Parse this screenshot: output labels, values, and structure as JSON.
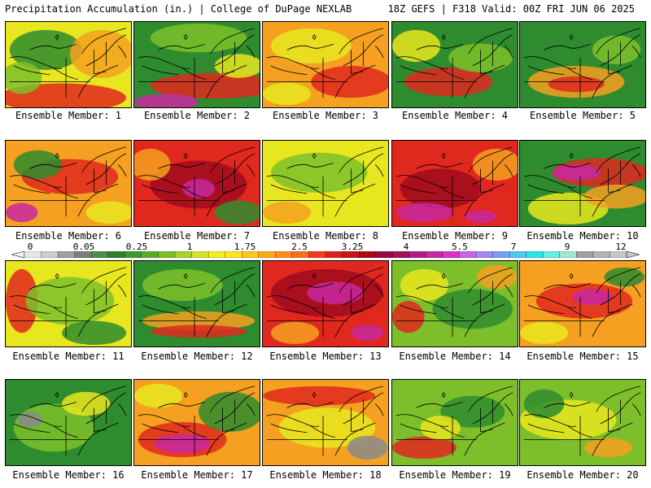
{
  "header": {
    "title": "Precipitation Accumulation (in.) | College of DuPage NEXLAB",
    "run_info": "18Z GEFS | F318 Valid: 00Z FRI JUN 06 2025"
  },
  "colorbar": {
    "labels": [
      "0",
      "0.05",
      "0.25",
      "1",
      "1.75",
      "2.5",
      "3.25",
      "4",
      "5.5",
      "7",
      "9",
      "12"
    ],
    "colors": [
      "#e6e6e6",
      "#cccccc",
      "#a0a0a0",
      "#7d7d7d",
      "#4e8d4e",
      "#2f7f2f",
      "#3c9a28",
      "#5aac28",
      "#7dc028",
      "#a8d22c",
      "#d2e628",
      "#f0f020",
      "#ffe61e",
      "#ffc81e",
      "#ffaa1e",
      "#ff8c1e",
      "#ff6e1e",
      "#f03c1e",
      "#dc1e1e",
      "#c81414",
      "#aa0a14",
      "#960a3c",
      "#a0145a",
      "#b41e82",
      "#c828a0",
      "#dc32c8",
      "#c864e6",
      "#a08cf0",
      "#78a0f0",
      "#50c8f0",
      "#28e6e6",
      "#64f0dc",
      "#a0e6d2",
      "#a0a0a0",
      "#b4b4b4",
      "#c8c8c8"
    ]
  },
  "palette": {
    "green": "#2e8b2e",
    "lightgreen": "#7dbf2a",
    "yellow": "#e8e61e",
    "orange": "#f5a020",
    "red": "#e0281e",
    "darkred": "#a00a1e",
    "magenta": "#c828a0",
    "gray": "#8a8a8a"
  },
  "members": [
    {
      "label": "Ensemble Member: 1"
    },
    {
      "label": "Ensemble Member: 2"
    },
    {
      "label": "Ensemble Member: 3"
    },
    {
      "label": "Ensemble Member: 4"
    },
    {
      "label": "Ensemble Member: 5"
    },
    {
      "label": "Ensemble Member: 6"
    },
    {
      "label": "Ensemble Member: 7"
    },
    {
      "label": "Ensemble Member: 8"
    },
    {
      "label": "Ensemble Member: 9"
    },
    {
      "label": "Ensemble Member: 10"
    },
    {
      "label": "Ensemble Member: 11"
    },
    {
      "label": "Ensemble Member: 12"
    },
    {
      "label": "Ensemble Member: 13"
    },
    {
      "label": "Ensemble Member: 14"
    },
    {
      "label": "Ensemble Member: 15"
    },
    {
      "label": "Ensemble Member: 16"
    },
    {
      "label": "Ensemble Member: 17"
    },
    {
      "label": "Ensemble Member: 18"
    },
    {
      "label": "Ensemble Member: 19"
    },
    {
      "label": "Ensemble Member: 20"
    }
  ]
}
